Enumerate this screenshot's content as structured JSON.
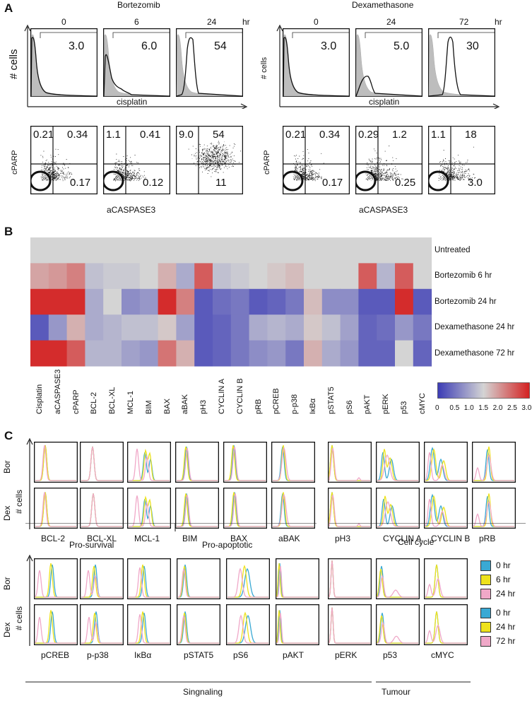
{
  "panels": {
    "a": "A",
    "b": "B",
    "c": "C"
  },
  "panelA": {
    "bortezomib": {
      "title": "Bortezomib",
      "times": [
        "0",
        "6",
        "24"
      ],
      "unit": "hr",
      "hist_values": [
        "3.0",
        "6.0",
        "54"
      ],
      "hist_ylabel": "# cells",
      "hist_xlabel": "cisplatin",
      "dot_ylabel": "cPARP",
      "dot_xlabel": "aCASPASE3",
      "quadrants": [
        {
          "ul": "0.21",
          "ur": "0.34",
          "lr": "0.17"
        },
        {
          "ul": "1.1",
          "ur": "0.41",
          "lr": "0.12"
        },
        {
          "ul": "9.0",
          "ur": "54",
          "lr": "11"
        }
      ]
    },
    "dexamethasone": {
      "title": "Dexamethasone",
      "times": [
        "0",
        "24",
        "72"
      ],
      "unit": "hr",
      "hist_values": [
        "3.0",
        "5.0",
        "30"
      ],
      "hist_ylabel": "# cells",
      "hist_xlabel": "cisplatin",
      "dot_ylabel": "cPARP",
      "dot_xlabel": "aCASPASE3",
      "quadrants": [
        {
          "ul": "0.21",
          "ur": "0.34",
          "lr": "0.17"
        },
        {
          "ul": "0.29",
          "ur": "1.2",
          "lr": "0.25"
        },
        {
          "ul": "1.1",
          "ur": "18",
          "lr": "3.0"
        }
      ]
    }
  },
  "chart_data": {
    "type": "heatmap",
    "rows": [
      "Untreated",
      "Bortezomib 6 hr",
      "Bortezomib 24 hr",
      "Dexamethasone 24 hr",
      "Dexamethasone 72 hr"
    ],
    "columns": [
      "Cisplatin",
      "aCASPASE3",
      "cPARP",
      "BCL-2",
      "BCL-XL",
      "MCL-1",
      "BIM",
      "BAX",
      "aBAK",
      "pH3",
      "CYCLIN A",
      "CYCLIN B",
      "pRB",
      "pCREB",
      "p-p38",
      "IκBα",
      "pSTAT5",
      "pS6",
      "pAKT",
      "pERK",
      "p53",
      "cMYC"
    ],
    "values": [
      [
        1.5,
        1.5,
        1.5,
        1.5,
        1.5,
        1.5,
        1.5,
        1.5,
        1.5,
        1.5,
        1.5,
        1.5,
        1.5,
        1.5,
        1.5,
        1.5,
        1.5,
        1.5,
        1.5,
        1.5,
        1.5,
        1.5
      ],
      [
        1.9,
        2.0,
        2.2,
        1.3,
        1.4,
        1.4,
        1.5,
        1.8,
        1.1,
        2.5,
        1.3,
        1.4,
        1.5,
        1.6,
        1.7,
        1.5,
        1.5,
        1.5,
        2.5,
        1.2,
        2.5,
        1.5
      ],
      [
        2.9,
        2.9,
        2.9,
        1.1,
        1.5,
        0.8,
        0.9,
        2.9,
        2.2,
        0.3,
        0.5,
        0.6,
        0.3,
        0.4,
        0.6,
        1.7,
        0.8,
        0.8,
        0.3,
        0.3,
        2.9,
        0.3
      ],
      [
        0.3,
        0.9,
        1.8,
        1.1,
        1.2,
        1.3,
        1.3,
        1.6,
        1.0,
        0.3,
        0.4,
        0.6,
        1.1,
        1.2,
        1.1,
        1.6,
        1.3,
        1.0,
        0.4,
        0.5,
        0.9,
        0.6
      ],
      [
        2.9,
        2.9,
        2.5,
        1.2,
        1.2,
        1.0,
        0.9,
        2.3,
        1.8,
        0.3,
        0.4,
        0.6,
        0.8,
        0.9,
        0.6,
        1.8,
        1.1,
        0.9,
        0.4,
        0.4,
        1.5,
        0.4
      ]
    ],
    "colorbar": {
      "ticks": [
        "0",
        "0.5",
        "1.0",
        "1.5",
        "2.0",
        "2.5",
        "3.0"
      ],
      "min": 0,
      "max": 3,
      "colors": [
        "#3b3bb5",
        "#d4d4d4",
        "#d42020"
      ]
    }
  },
  "panelC": {
    "row_bor": "Bor",
    "row_dex": "Dex",
    "ylabel": "# cells",
    "top_markers": [
      "BCL-2",
      "BCL-XL",
      "MCL-1",
      "BIM",
      "BAX",
      "aBAK",
      "pH3",
      "CYCLIN A",
      "CYCLIN B",
      "pRB"
    ],
    "top_groups": [
      "Pro-survival",
      "Pro-apoptotic",
      "Cell cycle"
    ],
    "bottom_markers": [
      "pCREB",
      "p-p38",
      "IκBα",
      "pSTAT5",
      "pS6",
      "pAKT",
      "pERK",
      "p53",
      "cMYC"
    ],
    "bottom_groups": [
      "Singnaling",
      "Tumour"
    ],
    "legend_bor": [
      {
        "label": "0 hr",
        "color": "#3aa9d4"
      },
      {
        "label": "6 hr",
        "color": "#eee21c"
      },
      {
        "label": "24 hr",
        "color": "#f0a8c8"
      }
    ],
    "legend_dex": [
      {
        "label": "0 hr",
        "color": "#3aa9d4"
      },
      {
        "label": "24 hr",
        "color": "#eee21c"
      },
      {
        "label": "72 hr",
        "color": "#f0a8c8"
      }
    ]
  }
}
